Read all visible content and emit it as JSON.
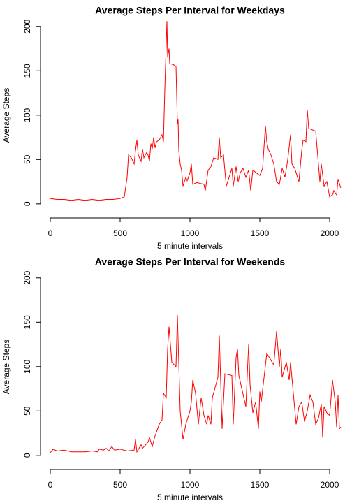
{
  "chart_data": [
    {
      "type": "line",
      "title": "Average Steps Per Interval for Weekdays",
      "xlabel": "5 minute intervals",
      "ylabel": "Average Steps",
      "color": "#ff0000",
      "xlim": [
        -70,
        2090
      ],
      "ylim": [
        -8,
        214
      ],
      "xticks": [
        0,
        500,
        1000,
        1500,
        2000
      ],
      "yticks": [
        0,
        50,
        100,
        150,
        200
      ],
      "x": [
        0,
        50,
        100,
        150,
        200,
        250,
        300,
        350,
        400,
        450,
        500,
        530,
        550,
        560,
        580,
        600,
        610,
        620,
        630,
        650,
        660,
        670,
        690,
        700,
        710,
        720,
        730,
        740,
        750,
        760,
        780,
        800,
        810,
        820,
        830,
        835,
        840,
        850,
        855,
        880,
        900,
        910,
        915,
        920,
        930,
        940,
        950,
        970,
        980,
        1000,
        1010,
        1020,
        1050,
        1100,
        1110,
        1130,
        1150,
        1170,
        1200,
        1210,
        1220,
        1240,
        1260,
        1280,
        1300,
        1310,
        1330,
        1345,
        1360,
        1380,
        1400,
        1420,
        1435,
        1450,
        1500,
        1520,
        1540,
        1550,
        1560,
        1580,
        1600,
        1620,
        1640,
        1660,
        1680,
        1700,
        1720,
        1730,
        1750,
        1780,
        1800,
        1810,
        1830,
        1840,
        1850,
        1900,
        1930,
        1940,
        1960,
        1980,
        2000,
        2020,
        2030,
        2050,
        2060,
        2080
      ],
      "values": [
        6,
        5,
        5,
        4,
        5,
        4,
        5,
        4,
        5,
        5,
        6,
        8,
        30,
        55,
        52,
        45,
        60,
        72,
        55,
        48,
        62,
        52,
        58,
        55,
        48,
        68,
        62,
        75,
        63,
        70,
        72,
        78,
        70,
        130,
        180,
        206,
        165,
        175,
        158,
        157,
        155,
        90,
        95,
        60,
        45,
        38,
        20,
        30,
        26,
        35,
        45,
        22,
        24,
        22,
        15,
        38,
        42,
        52,
        50,
        75,
        52,
        55,
        20,
        30,
        40,
        20,
        42,
        25,
        35,
        40,
        30,
        38,
        15,
        38,
        32,
        40,
        88,
        70,
        62,
        55,
        45,
        25,
        22,
        40,
        30,
        50,
        78,
        45,
        40,
        25,
        60,
        72,
        70,
        106,
        85,
        82,
        25,
        45,
        20,
        25,
        8,
        10,
        15,
        10,
        28,
        18
      ]
    },
    {
      "type": "line",
      "title": "Average Steps Per Interval for Weekends",
      "xlabel": "5 minute intervals",
      "ylabel": "Average Steps",
      "color": "#ff0000",
      "xlim": [
        -70,
        2090
      ],
      "ylim": [
        -8,
        214
      ],
      "xticks": [
        0,
        500,
        1000,
        1500,
        2000
      ],
      "yticks": [
        0,
        50,
        100,
        150,
        200
      ],
      "x": [
        0,
        20,
        50,
        100,
        150,
        200,
        250,
        300,
        340,
        350,
        380,
        400,
        420,
        440,
        460,
        500,
        550,
        600,
        610,
        620,
        650,
        660,
        700,
        710,
        730,
        750,
        780,
        800,
        810,
        830,
        840,
        850,
        870,
        900,
        910,
        930,
        950,
        970,
        1000,
        1010,
        1020,
        1040,
        1060,
        1080,
        1100,
        1120,
        1130,
        1150,
        1160,
        1200,
        1210,
        1230,
        1250,
        1300,
        1310,
        1330,
        1340,
        1350,
        1400,
        1420,
        1430,
        1450,
        1470,
        1490,
        1500,
        1510,
        1550,
        1600,
        1620,
        1640,
        1650,
        1660,
        1690,
        1710,
        1720,
        1740,
        1760,
        1780,
        1800,
        1820,
        1840,
        1860,
        1880,
        1900,
        1920,
        1940,
        1950,
        1960,
        1980,
        2000,
        2020,
        2040,
        2050,
        2060,
        2070,
        2080
      ],
      "values": [
        3,
        7,
        5,
        6,
        4,
        4,
        4,
        5,
        4,
        7,
        6,
        8,
        5,
        10,
        6,
        7,
        5,
        6,
        18,
        4,
        12,
        8,
        15,
        20,
        10,
        22,
        35,
        40,
        70,
        65,
        120,
        145,
        105,
        100,
        158,
        50,
        18,
        35,
        50,
        60,
        85,
        70,
        35,
        65,
        45,
        35,
        45,
        35,
        65,
        88,
        135,
        30,
        92,
        90,
        35,
        110,
        120,
        90,
        55,
        125,
        80,
        48,
        60,
        30,
        72,
        60,
        115,
        102,
        140,
        100,
        120,
        88,
        105,
        85,
        105,
        70,
        35,
        55,
        60,
        38,
        50,
        68,
        60,
        35,
        42,
        58,
        20,
        55,
        48,
        45,
        85,
        60,
        32,
        68,
        30,
        32
      ]
    }
  ]
}
